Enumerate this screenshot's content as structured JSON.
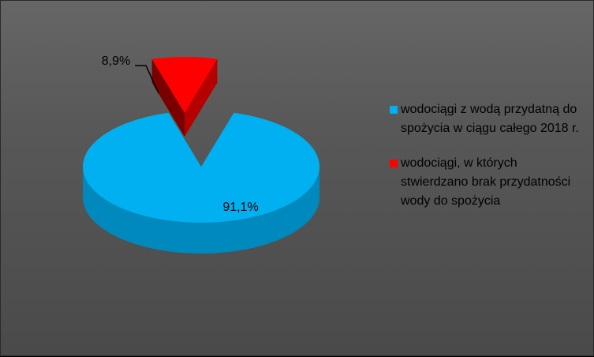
{
  "chart_data": {
    "type": "pie",
    "style": "3d-exploded",
    "slices": [
      {
        "name": "wodociągi z wodą przydatną do spożycia w ciągu  całego 2018 r.",
        "value": 91.1,
        "label": "91,1%",
        "color": "#00B0F0",
        "side_color": "#0089BC",
        "dark_color": "#005F84"
      },
      {
        "name": "wodociągi, w których stwierdzano brak przydatności wody do spożycia",
        "value": 8.9,
        "label": "8,9%",
        "color": "#FF0000",
        "side_color": "#B50000",
        "dark_color": "#7A0000"
      }
    ],
    "legend": {
      "placement": "right",
      "items": [
        {
          "text": "wodociągi z wodą przydatną do spożycia w ciągu  całego 2018 r.",
          "color": "#00B0F0"
        },
        {
          "text": "wodociągi, w których stwierdzano brak przydatności wody do spożycia",
          "color": "#FF0000"
        }
      ]
    }
  }
}
